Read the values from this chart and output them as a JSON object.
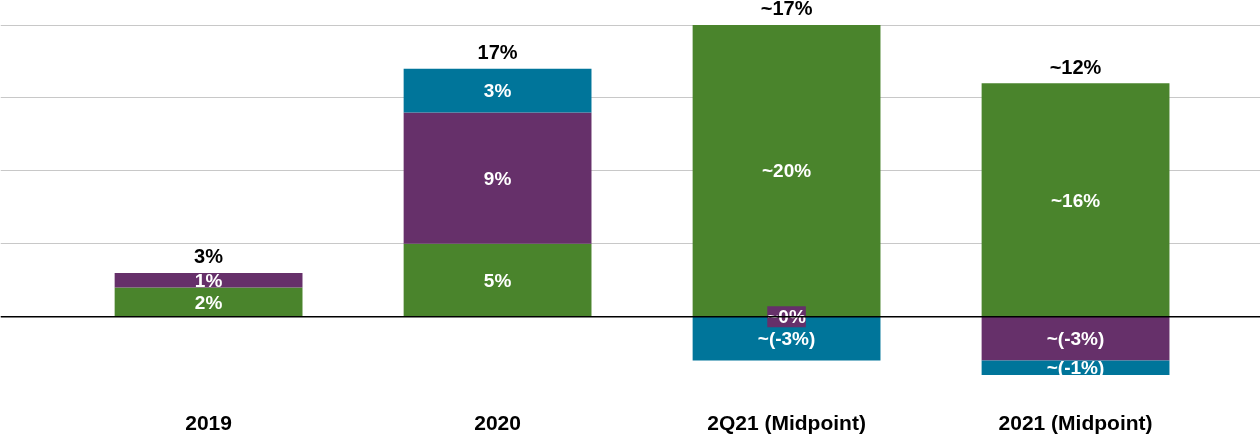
{
  "chart_data": {
    "type": "bar",
    "stacked": true,
    "categories": [
      "2019",
      "2020",
      "2Q21 (Midpoint)",
      "2021 (Midpoint)"
    ],
    "series": [
      {
        "color": "#4a842c",
        "values": [
          2,
          5,
          20,
          16
        ],
        "value_labels": [
          "2%",
          "5%",
          "~20%",
          "~16%"
        ]
      },
      {
        "color": "#66306a",
        "values": [
          1,
          9,
          null,
          -3
        ],
        "value_labels": [
          "1%",
          "9%",
          null,
          "~(-3%)"
        ]
      },
      {
        "color": "#00759a",
        "values": [
          null,
          3,
          -3,
          -1
        ],
        "value_labels": [
          null,
          "3%",
          "~(-3%)",
          "~(-1%)"
        ]
      }
    ],
    "totals": [
      "3%",
      "17%",
      "~17%",
      "~12%"
    ],
    "annotations": [
      {
        "text": "~0%",
        "x": "2Q21 (Midpoint)",
        "y": 0
      }
    ],
    "yticks": [
      {
        "value": 0,
        "label": null
      },
      {
        "value": 5,
        "label": null
      },
      {
        "value": 10,
        "label": null
      },
      {
        "value": 15,
        "label": null
      },
      {
        "value": 20,
        "label": null
      }
    ],
    "tick_labels": "x",
    "grid": "y",
    "ref_lines": [
      {
        "axis": "y",
        "value": 0,
        "color": "#000000"
      }
    ]
  }
}
